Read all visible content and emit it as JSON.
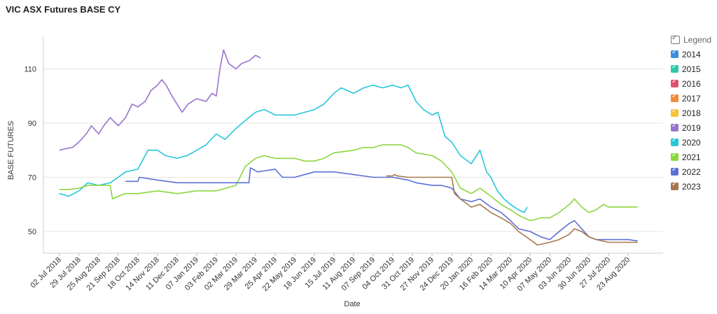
{
  "chart_data": {
    "type": "line",
    "title": "VIC ASX Futures BASE CY",
    "xlabel": "Date",
    "ylabel": "BASE FUTURES",
    "ylim": [
      42,
      122
    ],
    "xlim": [
      "2018-06-10",
      "2020-10-10"
    ],
    "y_ticks": [
      50,
      70,
      90,
      110
    ],
    "x_ticks": [
      "02 Jul 2018",
      "29 Jul 2018",
      "25 Aug 2018",
      "21 Sep 2018",
      "18 Oct 2018",
      "14 Nov 2018",
      "11 Dec 2018",
      "07 Jan 2019",
      "03 Feb 2019",
      "02 Mar 2019",
      "29 Mar 2019",
      "25 Apr 2019",
      "22 May 2019",
      "18 Jun 2019",
      "15 Jul 2019",
      "11 Aug 2019",
      "07 Sep 2019",
      "04 Oct 2019",
      "31 Oct 2019",
      "27 Nov 2019",
      "24 Dec 2019",
      "20 Jan 2020",
      "16 Feb 2020",
      "14 Mar 2020",
      "10 Apr 2020",
      "07 May 2020",
      "03 Jun 2020",
      "30 Jun 2020",
      "27 Jul 2020",
      "23 Aug 2020"
    ],
    "grid": "horizontal",
    "legend": {
      "title": "Legend",
      "position": "right"
    },
    "series": [
      {
        "name": "2014",
        "color": "#3a8fd8",
        "points": []
      },
      {
        "name": "2015",
        "color": "#2ec7a6",
        "points": []
      },
      {
        "name": "2016",
        "color": "#e0506f",
        "points": []
      },
      {
        "name": "2017",
        "color": "#f28a3c",
        "points": []
      },
      {
        "name": "2018",
        "color": "#f5c23a",
        "points": []
      },
      {
        "name": "2019",
        "color": "#9b72cf",
        "points": [
          [
            "2018-07-02",
            80
          ],
          [
            "2018-07-10",
            80.5
          ],
          [
            "2018-07-20",
            81
          ],
          [
            "2018-07-29",
            83
          ],
          [
            "2018-08-08",
            86
          ],
          [
            "2018-08-15",
            89
          ],
          [
            "2018-08-25",
            86
          ],
          [
            "2018-09-01",
            89
          ],
          [
            "2018-09-10",
            92
          ],
          [
            "2018-09-21",
            89
          ],
          [
            "2018-10-01",
            92
          ],
          [
            "2018-10-10",
            97
          ],
          [
            "2018-10-18",
            96
          ],
          [
            "2018-10-28",
            98
          ],
          [
            "2018-11-05",
            102
          ],
          [
            "2018-11-14",
            104
          ],
          [
            "2018-11-20",
            106
          ],
          [
            "2018-11-26",
            104
          ],
          [
            "2018-12-04",
            100
          ],
          [
            "2018-12-11",
            97
          ],
          [
            "2018-12-18",
            94
          ],
          [
            "2018-12-26",
            97
          ],
          [
            "2019-01-07",
            99
          ],
          [
            "2019-01-20",
            98
          ],
          [
            "2019-01-28",
            101
          ],
          [
            "2019-02-03",
            100
          ],
          [
            "2019-02-08",
            110
          ],
          [
            "2019-02-13",
            117
          ],
          [
            "2019-02-20",
            112
          ],
          [
            "2019-03-02",
            110
          ],
          [
            "2019-03-10",
            112
          ],
          [
            "2019-03-20",
            113
          ],
          [
            "2019-03-29",
            115
          ],
          [
            "2019-04-05",
            114
          ]
        ]
      },
      {
        "name": "2020",
        "color": "#26c6da",
        "points": [
          [
            "2018-07-02",
            64
          ],
          [
            "2018-07-15",
            63
          ],
          [
            "2018-07-29",
            65
          ],
          [
            "2018-08-10",
            68
          ],
          [
            "2018-08-25",
            67
          ],
          [
            "2018-09-10",
            68
          ],
          [
            "2018-09-21",
            70
          ],
          [
            "2018-10-01",
            72
          ],
          [
            "2018-10-18",
            73
          ],
          [
            "2018-11-01",
            80
          ],
          [
            "2018-11-14",
            80
          ],
          [
            "2018-11-25",
            78
          ],
          [
            "2018-12-11",
            77
          ],
          [
            "2018-12-25",
            78
          ],
          [
            "2019-01-07",
            80
          ],
          [
            "2019-01-20",
            82
          ],
          [
            "2019-02-03",
            86
          ],
          [
            "2019-02-15",
            84
          ],
          [
            "2019-03-02",
            88
          ],
          [
            "2019-03-15",
            91
          ],
          [
            "2019-03-29",
            94
          ],
          [
            "2019-04-10",
            95
          ],
          [
            "2019-04-25",
            93
          ],
          [
            "2019-05-10",
            93
          ],
          [
            "2019-05-22",
            93
          ],
          [
            "2019-06-05",
            94
          ],
          [
            "2019-06-18",
            95
          ],
          [
            "2019-07-01",
            97
          ],
          [
            "2019-07-15",
            101
          ],
          [
            "2019-07-25",
            103
          ],
          [
            "2019-08-11",
            101
          ],
          [
            "2019-08-25",
            103
          ],
          [
            "2019-09-07",
            104
          ],
          [
            "2019-09-20",
            103
          ],
          [
            "2019-10-04",
            104
          ],
          [
            "2019-10-15",
            103
          ],
          [
            "2019-10-25",
            104
          ],
          [
            "2019-11-05",
            98
          ],
          [
            "2019-11-15",
            95
          ],
          [
            "2019-11-27",
            93
          ],
          [
            "2019-12-05",
            94
          ],
          [
            "2019-12-15",
            85
          ],
          [
            "2019-12-24",
            83
          ],
          [
            "2020-01-05",
            78
          ],
          [
            "2020-01-20",
            75
          ],
          [
            "2020-02-01",
            80
          ],
          [
            "2020-02-10",
            72
          ],
          [
            "2020-02-16",
            70
          ],
          [
            "2020-02-25",
            65
          ],
          [
            "2020-03-05",
            62
          ],
          [
            "2020-03-14",
            60
          ],
          [
            "2020-03-25",
            58
          ],
          [
            "2020-04-02",
            57
          ],
          [
            "2020-04-06",
            59
          ]
        ]
      },
      {
        "name": "2021",
        "color": "#8bd63e",
        "points": [
          [
            "2018-07-02",
            65.5
          ],
          [
            "2018-07-15",
            65.5
          ],
          [
            "2018-07-29",
            66
          ],
          [
            "2018-08-10",
            67
          ],
          [
            "2018-08-25",
            67
          ],
          [
            "2018-09-10",
            67
          ],
          [
            "2018-09-13",
            62
          ],
          [
            "2018-09-21",
            63
          ],
          [
            "2018-10-01",
            64
          ],
          [
            "2018-10-18",
            64
          ],
          [
            "2018-11-14",
            65
          ],
          [
            "2018-12-11",
            64
          ],
          [
            "2019-01-07",
            65
          ],
          [
            "2019-02-03",
            65
          ],
          [
            "2019-03-02",
            67
          ],
          [
            "2019-03-15",
            74
          ],
          [
            "2019-03-29",
            77
          ],
          [
            "2019-04-10",
            78
          ],
          [
            "2019-04-25",
            77
          ],
          [
            "2019-05-22",
            77
          ],
          [
            "2019-06-05",
            76
          ],
          [
            "2019-06-18",
            76
          ],
          [
            "2019-07-01",
            77
          ],
          [
            "2019-07-15",
            79
          ],
          [
            "2019-08-11",
            80
          ],
          [
            "2019-08-25",
            81
          ],
          [
            "2019-09-07",
            81
          ],
          [
            "2019-09-20",
            82
          ],
          [
            "2019-10-04",
            82
          ],
          [
            "2019-10-15",
            82
          ],
          [
            "2019-10-25",
            81
          ],
          [
            "2019-11-05",
            79
          ],
          [
            "2019-11-27",
            78
          ],
          [
            "2019-12-10",
            76
          ],
          [
            "2019-12-24",
            72
          ],
          [
            "2020-01-05",
            66
          ],
          [
            "2020-01-20",
            64
          ],
          [
            "2020-02-01",
            66
          ],
          [
            "2020-02-16",
            63
          ],
          [
            "2020-03-01",
            60
          ],
          [
            "2020-03-14",
            58
          ],
          [
            "2020-03-25",
            56
          ],
          [
            "2020-04-10",
            54
          ],
          [
            "2020-04-25",
            55
          ],
          [
            "2020-05-07",
            55
          ],
          [
            "2020-05-20",
            57
          ],
          [
            "2020-06-03",
            60
          ],
          [
            "2020-06-10",
            62
          ],
          [
            "2020-06-20",
            59
          ],
          [
            "2020-06-30",
            57
          ],
          [
            "2020-07-10",
            58
          ],
          [
            "2020-07-20",
            60
          ],
          [
            "2020-07-27",
            59
          ],
          [
            "2020-08-10",
            59
          ],
          [
            "2020-08-23",
            59
          ],
          [
            "2020-09-05",
            59
          ]
        ]
      },
      {
        "name": "2022",
        "color": "#5b6fd6",
        "points": [
          [
            "2018-10-01",
            68.5
          ],
          [
            "2018-10-18",
            68.5
          ],
          [
            "2018-10-20",
            70
          ],
          [
            "2018-11-14",
            69
          ],
          [
            "2018-12-11",
            68
          ],
          [
            "2019-01-07",
            68
          ],
          [
            "2019-02-03",
            68
          ],
          [
            "2019-03-02",
            68
          ],
          [
            "2019-03-20",
            68
          ],
          [
            "2019-03-22",
            73.5
          ],
          [
            "2019-04-01",
            72
          ],
          [
            "2019-04-25",
            73
          ],
          [
            "2019-05-05",
            70
          ],
          [
            "2019-05-22",
            70
          ],
          [
            "2019-06-18",
            72
          ],
          [
            "2019-07-15",
            72
          ],
          [
            "2019-08-11",
            71
          ],
          [
            "2019-09-07",
            70
          ],
          [
            "2019-10-04",
            70
          ],
          [
            "2019-10-25",
            69
          ],
          [
            "2019-11-05",
            68
          ],
          [
            "2019-11-27",
            67
          ],
          [
            "2019-12-10",
            67
          ],
          [
            "2019-12-24",
            66
          ],
          [
            "2020-01-05",
            62
          ],
          [
            "2020-01-20",
            61
          ],
          [
            "2020-02-01",
            62
          ],
          [
            "2020-02-16",
            59
          ],
          [
            "2020-03-01",
            57
          ],
          [
            "2020-03-14",
            54
          ],
          [
            "2020-03-25",
            51
          ],
          [
            "2020-04-10",
            50
          ],
          [
            "2020-04-25",
            48
          ],
          [
            "2020-05-07",
            47
          ],
          [
            "2020-05-20",
            50
          ],
          [
            "2020-06-03",
            53
          ],
          [
            "2020-06-10",
            54
          ],
          [
            "2020-06-20",
            51
          ],
          [
            "2020-06-30",
            48
          ],
          [
            "2020-07-10",
            47
          ],
          [
            "2020-07-27",
            47
          ],
          [
            "2020-08-10",
            47
          ],
          [
            "2020-08-23",
            47
          ],
          [
            "2020-09-05",
            46.5
          ]
        ]
      },
      {
        "name": "2023",
        "color": "#a7784a",
        "points": [
          [
            "2019-09-25",
            70.5
          ],
          [
            "2019-10-04",
            70.5
          ],
          [
            "2019-10-06",
            71
          ],
          [
            "2019-10-10",
            70.5
          ],
          [
            "2019-10-25",
            70
          ],
          [
            "2019-11-27",
            70
          ],
          [
            "2019-12-24",
            70
          ],
          [
            "2019-12-28",
            64
          ],
          [
            "2020-01-05",
            62
          ],
          [
            "2020-01-20",
            59
          ],
          [
            "2020-02-01",
            60
          ],
          [
            "2020-02-16",
            57
          ],
          [
            "2020-03-01",
            55
          ],
          [
            "2020-03-14",
            53
          ],
          [
            "2020-03-25",
            50
          ],
          [
            "2020-04-10",
            47
          ],
          [
            "2020-04-20",
            45
          ],
          [
            "2020-05-07",
            46
          ],
          [
            "2020-05-20",
            47
          ],
          [
            "2020-06-03",
            49
          ],
          [
            "2020-06-10",
            51
          ],
          [
            "2020-06-20",
            50
          ],
          [
            "2020-06-30",
            48
          ],
          [
            "2020-07-10",
            47
          ],
          [
            "2020-07-27",
            46
          ],
          [
            "2020-08-10",
            46
          ],
          [
            "2020-08-23",
            46
          ],
          [
            "2020-09-05",
            46
          ]
        ]
      }
    ]
  }
}
